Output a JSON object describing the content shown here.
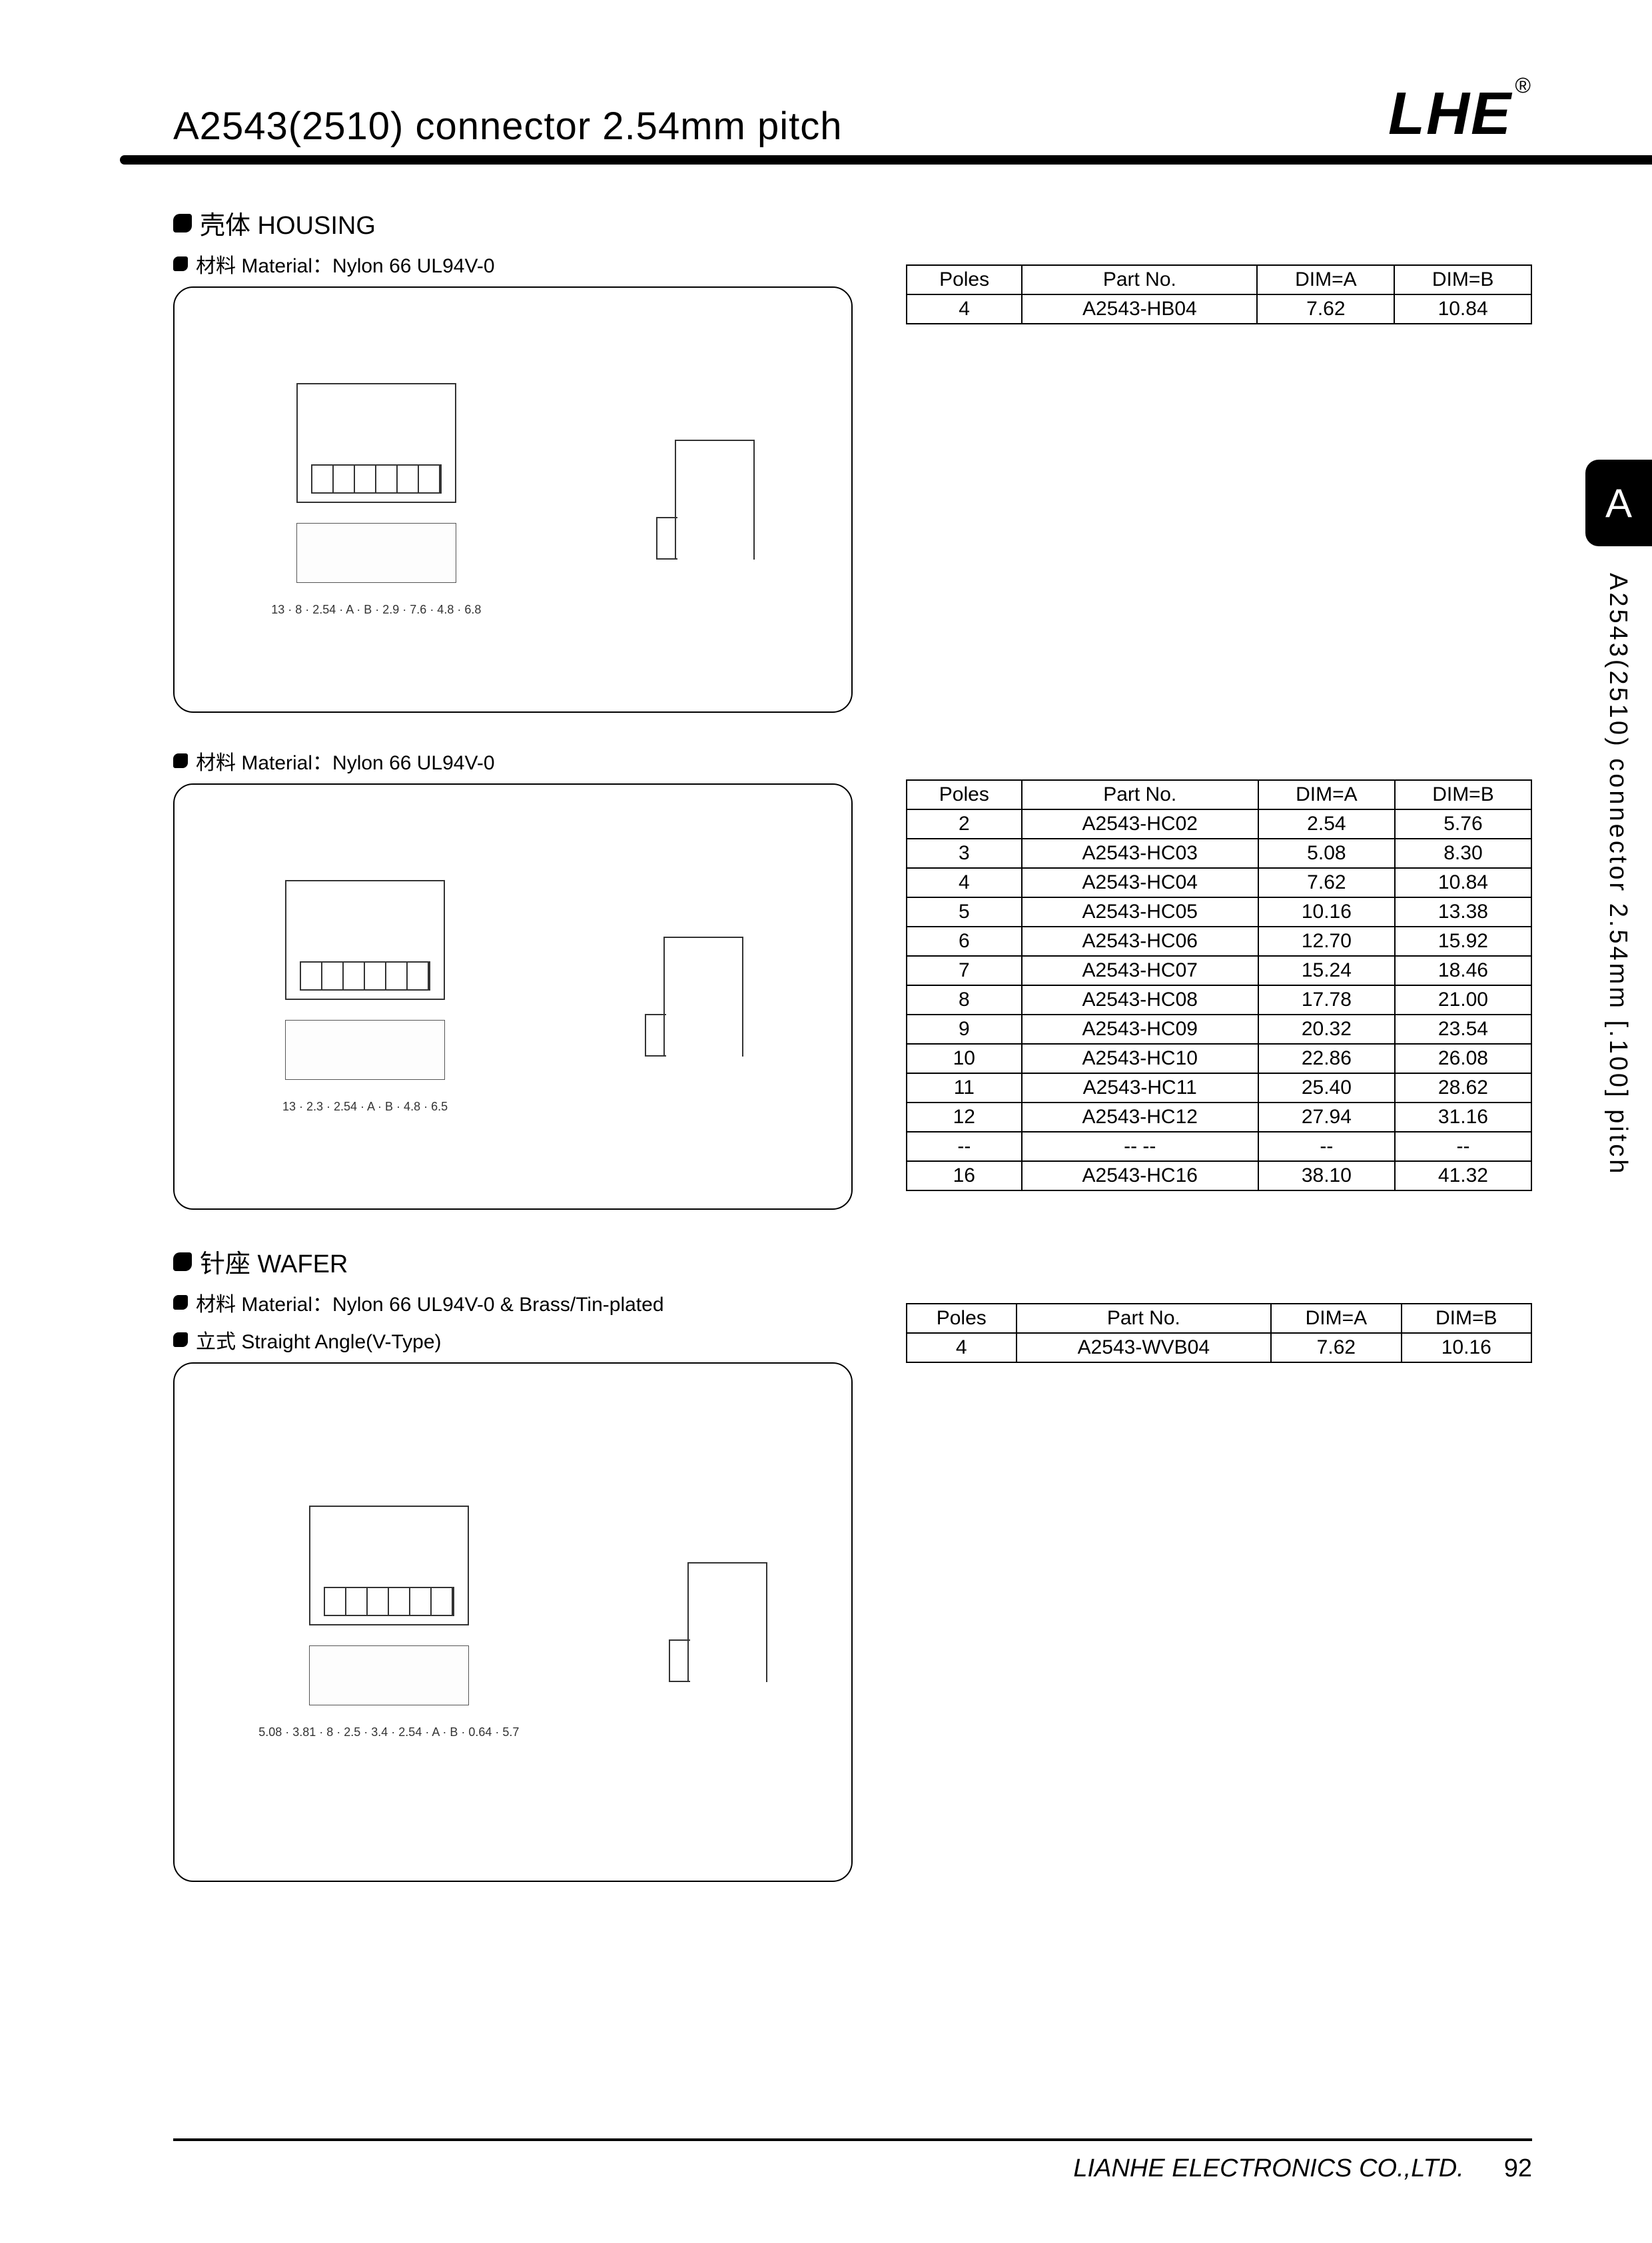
{
  "header": {
    "title": "A2543(2510) connector 2.54mm pitch",
    "logo": "LHE"
  },
  "sideTab": "A",
  "sideLabel": "A2543(2510) connector 2.54mm [.100] pitch",
  "sections": [
    {
      "heading": "壳体 HOUSING",
      "subs": [
        "材料 Material：Nylon 66 UL94V-0"
      ],
      "drawingDims": [
        "13",
        "8",
        "2.54",
        "A",
        "B",
        "2.9",
        "7.6",
        "4.8",
        "6.8"
      ],
      "table": {
        "headers": [
          "Poles",
          "Part No.",
          "DIM=A",
          "DIM=B"
        ],
        "rows": [
          [
            "4",
            "A2543-HB04",
            "7.62",
            "10.84"
          ]
        ]
      }
    },
    {
      "heading": "",
      "subs": [
        "材料 Material：Nylon 66 UL94V-0"
      ],
      "drawingDims": [
        "13",
        "2.3",
        "2.54",
        "A",
        "B",
        "4.8",
        "6.5"
      ],
      "table": {
        "headers": [
          "Poles",
          "Part No.",
          "DIM=A",
          "DIM=B"
        ],
        "rows": [
          [
            "2",
            "A2543-HC02",
            "2.54",
            "5.76"
          ],
          [
            "3",
            "A2543-HC03",
            "5.08",
            "8.30"
          ],
          [
            "4",
            "A2543-HC04",
            "7.62",
            "10.84"
          ],
          [
            "5",
            "A2543-HC05",
            "10.16",
            "13.38"
          ],
          [
            "6",
            "A2543-HC06",
            "12.70",
            "15.92"
          ],
          [
            "7",
            "A2543-HC07",
            "15.24",
            "18.46"
          ],
          [
            "8",
            "A2543-HC08",
            "17.78",
            "21.00"
          ],
          [
            "9",
            "A2543-HC09",
            "20.32",
            "23.54"
          ],
          [
            "10",
            "A2543-HC10",
            "22.86",
            "26.08"
          ],
          [
            "11",
            "A2543-HC11",
            "25.40",
            "28.62"
          ],
          [
            "12",
            "A2543-HC12",
            "27.94",
            "31.16"
          ],
          [
            "--",
            "-- --",
            "--",
            "--"
          ],
          [
            "16",
            "A2543-HC16",
            "38.10",
            "41.32"
          ]
        ]
      }
    },
    {
      "heading": "针座 WAFER",
      "subs": [
        "材料 Material：Nylon 66 UL94V-0 & Brass/Tin-plated",
        "立式 Straight Angle(V-Type)"
      ],
      "drawingDims": [
        "5.08",
        "3.81",
        "8",
        "2.5",
        "3.4",
        "2.54",
        "A",
        "B",
        "0.64",
        "5.7"
      ],
      "tall": true,
      "table": {
        "headers": [
          "Poles",
          "Part No.",
          "DIM=A",
          "DIM=B"
        ],
        "rows": [
          [
            "4",
            "A2543-WVB04",
            "7.62",
            "10.16"
          ]
        ]
      }
    }
  ],
  "footer": {
    "company": "LIANHE ELECTRONICS CO.,LTD.",
    "page": "92"
  },
  "colors": {
    "text": "#000000",
    "bg": "#ffffff",
    "border": "#000000"
  }
}
